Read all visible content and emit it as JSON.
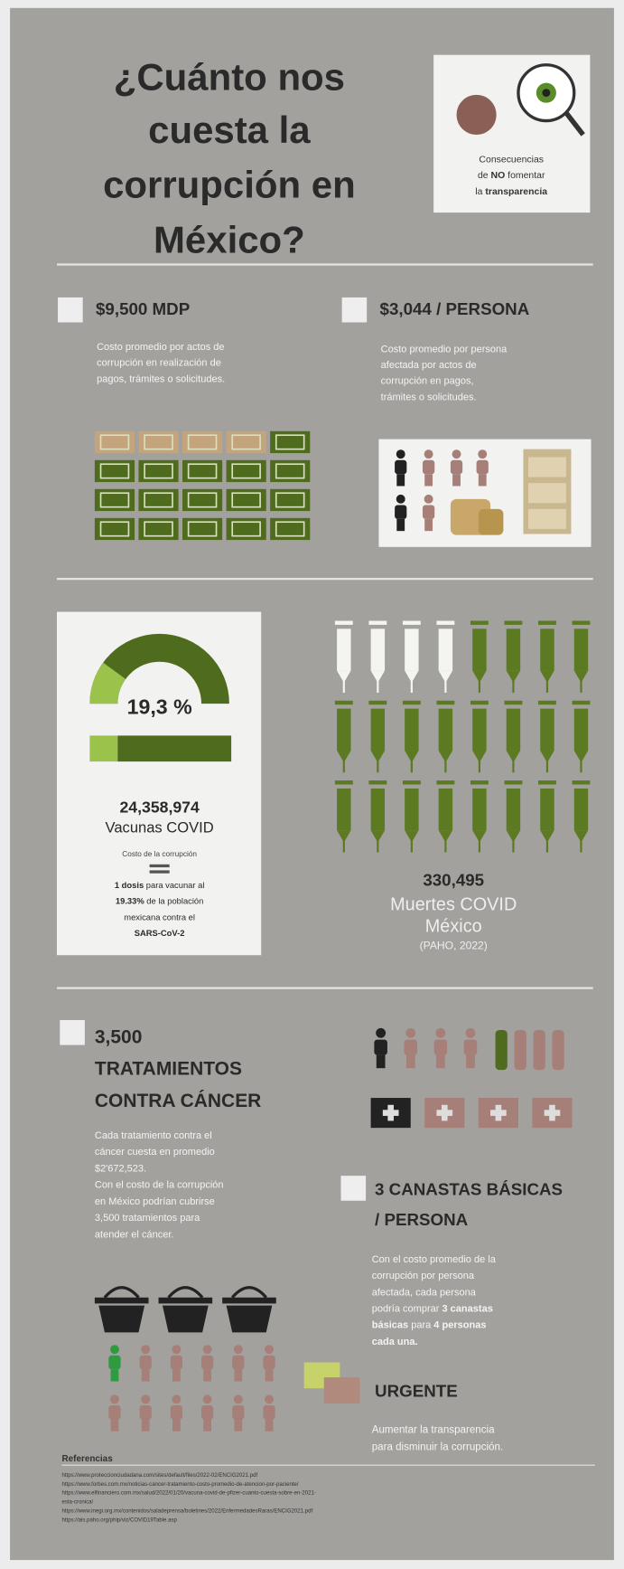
{
  "header": {
    "title": [
      "¿Cuánto nos",
      "cuesta la",
      "corrupción en",
      "México?"
    ]
  },
  "logo": {
    "lines": [
      [
        "Consecuencias"
      ],
      [
        "de ",
        "NO",
        " fomentar"
      ],
      [
        "la ",
        "transparencia"
      ]
    ]
  },
  "cost_total": {
    "heading": "$9,500 MDP",
    "text": [
      [
        "Costo promedio por actos de"
      ],
      [
        "corrupción en realización de"
      ],
      [
        "pagos, trámites o solicitudes."
      ]
    ]
  },
  "cost_person": {
    "heading": "$3,044 / PERSONA",
    "text": [
      [
        "Costo promedio por persona"
      ],
      [
        "afectada por actos de"
      ],
      [
        "corrupción en pagos,"
      ],
      [
        "trámites o solicitudes."
      ]
    ]
  },
  "vaccines": {
    "percent": "19,3 %",
    "number": "24,358,974",
    "label": "Vacunas COVID",
    "note": "Costo de la corrupción",
    "text": [
      [
        "",
        "1 dosis",
        " para vacunar al"
      ],
      [
        "",
        "19.33%",
        " de la población"
      ],
      [
        "mexicana contra el"
      ],
      [
        "",
        "SARS-CoV-2"
      ]
    ]
  },
  "deaths": {
    "number": "330,495",
    "lines": [
      "Muertes COVID",
      "México",
      "(PAHO, 2022)"
    ]
  },
  "cancer": {
    "heading": [
      "3,500",
      "TRATAMIENTOS",
      "CONTRA CÁNCER"
    ],
    "text": [
      [
        "Cada tratamiento contra el"
      ],
      [
        "cáncer cuesta en promedio"
      ],
      [
        "$2'672,523."
      ],
      [
        "Con el costo de la corrupción"
      ],
      [
        "en México podrían cubrirse"
      ],
      [
        "3,500 tratamientos para"
      ],
      [
        "atender el cáncer."
      ]
    ]
  },
  "baskets": {
    "heading": [
      "3 CANASTAS BÁSICAS",
      "/ PERSONA"
    ],
    "text": [
      [
        "Con el costo promedio de la"
      ],
      [
        "corrupción por persona"
      ],
      [
        "afectada, cada persona"
      ],
      [
        "podría comprar ",
        "3 canastas"
      ],
      [
        "",
        "básicas",
        " para ",
        "4 personas"
      ],
      [
        "",
        "cada una."
      ]
    ]
  },
  "urgent": {
    "heading": "URGENTE",
    "text": [
      [
        "Aumentar la transparencia"
      ],
      [
        "para disminuir la corrupción."
      ]
    ]
  },
  "references": {
    "title": "Referencias",
    "items": [
      "https://www.proteccionciudadana.com/sites/default/files/2022-02/ENCIG2021.pdf",
      "https://www.forbes.com.mx/noticias-cancer-tratamiento-costo-promedio-de-atencion-por-paciente/",
      "https://www.elfinanciero.com.mx/salud/2022/01/20/vacuna-covid-de-pfizer-cuanto-cuesta-sobre-en-2021-",
      "esta-cronica/",
      "https://www.inegi.org.mx/contenidos/saladeprensa/boletines/2022/EnfermedadesRaras/ENCIG2021.pdf",
      "https://ais.paho.org/phip/viz/COVID19Table.asp"
    ]
  }
}
